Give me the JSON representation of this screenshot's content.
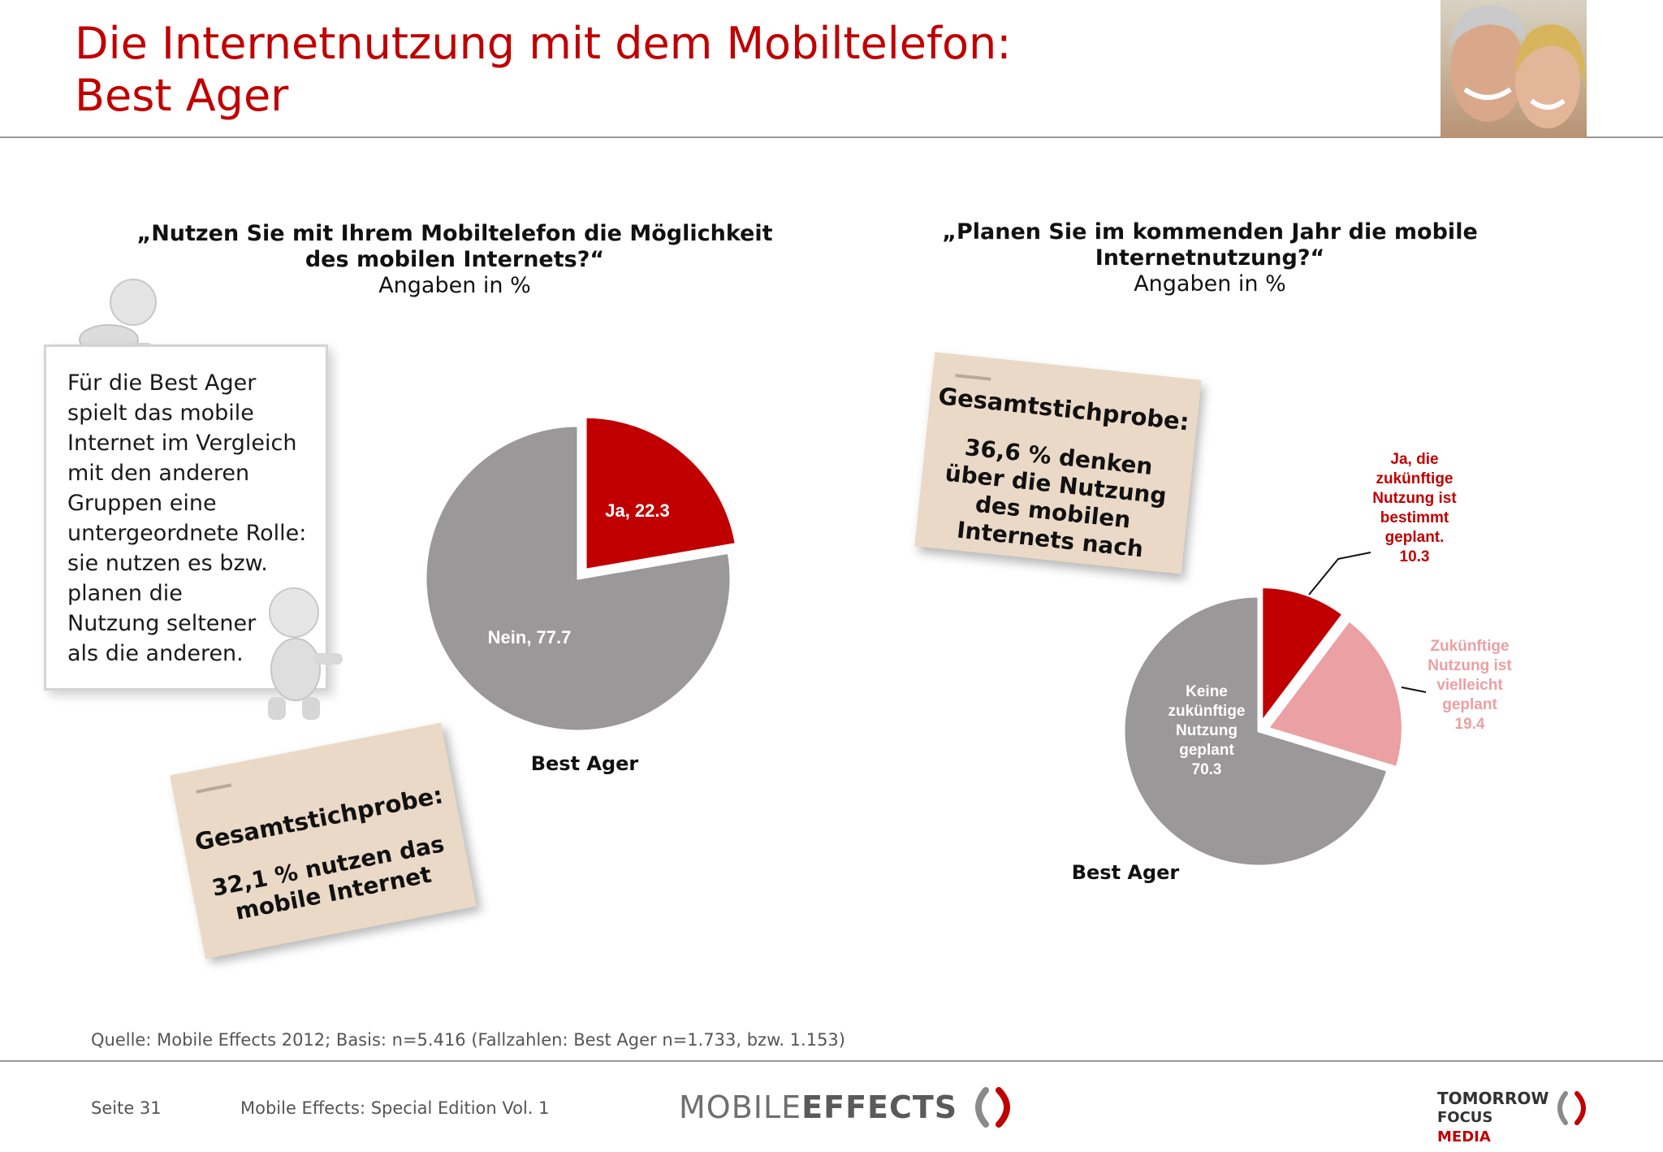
{
  "header": {
    "title_line1": "Die Internetnutzung mit dem Mobiltelefon:",
    "title_line2": "Best Ager"
  },
  "note": {
    "lines": [
      "Für die Best Ager",
      "spielt das mobile",
      "Internet im Vergleich",
      "mit den anderen",
      "Gruppen eine",
      "untergeordnete Rolle:",
      "sie nutzen es bzw.",
      "planen die",
      "Nutzung seltener",
      "als die anderen."
    ]
  },
  "sticky_left": {
    "heading": "Gesamtstichprobe:",
    "body_lines": [
      "32,1 % nutzen das",
      "mobile Internet"
    ]
  },
  "sticky_right": {
    "heading": "Gesamtstichprobe:",
    "body_lines": [
      "36,6 % denken",
      "über die Nutzung",
      "des mobilen",
      "Internets nach"
    ]
  },
  "chart_data": [
    {
      "type": "pie",
      "title_lines": [
        "„Nutzen Sie mit Ihrem Mobiltelefon die Möglichkeit",
        "des mobilen Internets?“"
      ],
      "subtitle": "Angaben in %",
      "xlabel": "Best Ager",
      "slices": [
        {
          "label_lines": [
            "Ja, 22.3"
          ],
          "value": 22.3,
          "color": "#c00000",
          "exploded": true
        },
        {
          "label_lines": [
            "Nein, 77.7"
          ],
          "value": 77.7,
          "color": "#9a9899",
          "exploded": false
        }
      ]
    },
    {
      "type": "pie",
      "title_lines": [
        "„Planen Sie im kommenden Jahr die mobile",
        "Internetnutzung?“"
      ],
      "subtitle": "Angaben in %",
      "xlabel": "Best Ager",
      "slices": [
        {
          "label_lines": [
            "Ja, die",
            "zukünftige",
            "Nutzung ist",
            "bestimmt",
            "geplant.",
            "10.3"
          ],
          "value": 10.3,
          "color": "#c00000",
          "exploded": true
        },
        {
          "label_lines": [
            "Zukünftige",
            "Nutzung ist",
            "vielleicht",
            "geplant",
            "19.4"
          ],
          "value": 19.4,
          "color": "#eba0a3",
          "exploded": true
        },
        {
          "label_lines": [
            "Keine",
            "zukünftige",
            "Nutzung",
            "geplant",
            "70.3"
          ],
          "value": 70.3,
          "color": "#9a9899",
          "exploded": false
        }
      ]
    }
  ],
  "source": "Quelle: Mobile Effects 2012; Basis: n=5.416 (Fallzahlen: Best Ager n=1.733, bzw. 1.153)",
  "footer": {
    "page": "Seite 31",
    "edition": "Mobile Effects: Special Edition Vol. 1",
    "logo_mobile": "MOBILE",
    "logo_effects": "EFFECTS",
    "logo_tf_line1": "TOMORROW",
    "logo_tf_line2a": "FOCUS",
    "logo_tf_line2b": "MEDIA"
  }
}
